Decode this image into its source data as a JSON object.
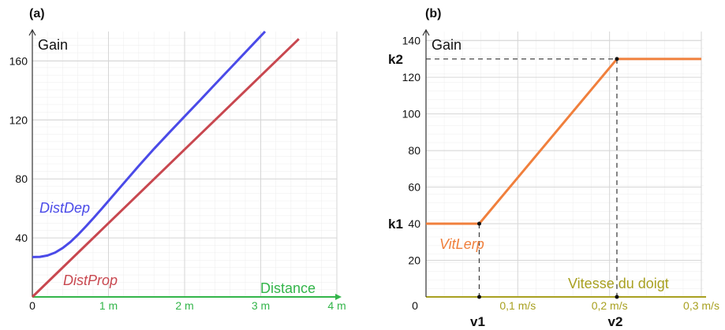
{
  "chart_data": [
    {
      "type": "line",
      "panel_label": "(a)",
      "ylabel": "Gain",
      "xlabel": "Distance",
      "xlim": [
        0,
        4
      ],
      "ylim": [
        0,
        180
      ],
      "x_ticks": [
        {
          "value": 0,
          "label": "0"
        },
        {
          "value": 1,
          "label": "1 m"
        },
        {
          "value": 2,
          "label": "2 m"
        },
        {
          "value": 3,
          "label": "3 m"
        },
        {
          "value": 4,
          "label": "4 m"
        }
      ],
      "y_ticks": [
        {
          "value": 40,
          "label": "40"
        },
        {
          "value": 80,
          "label": "80"
        },
        {
          "value": 120,
          "label": "120"
        },
        {
          "value": 160,
          "label": "160"
        }
      ],
      "grid": true,
      "colors": {
        "xaxis": "#33b54a",
        "yaxis": "#333333",
        "grid": "#e0e0e0"
      },
      "series": [
        {
          "name": "DistDep",
          "color": "#4a4ae8",
          "x": [
            0,
            0.1,
            0.2,
            0.3,
            0.4,
            0.5,
            0.6,
            0.7,
            0.8,
            0.9,
            1.0,
            1.2,
            1.4,
            1.6,
            1.8,
            2.0,
            2.2,
            2.4,
            2.6,
            2.8,
            3.0,
            3.2,
            3.4,
            3.5
          ],
          "y": [
            27,
            27.2,
            28.1,
            30.1,
            33.2,
            37.3,
            42.2,
            47.6,
            53.3,
            59.2,
            65.1,
            77.1,
            89.0,
            100.5,
            111.5,
            122.4,
            133.2,
            144.2,
            155.1,
            166.0,
            176.9,
            187.8,
            198.7,
            204.1
          ]
        },
        {
          "name": "DistProp",
          "color": "#c8474f",
          "x": [
            0,
            3.5
          ],
          "y": [
            0,
            175
          ]
        }
      ]
    },
    {
      "type": "line",
      "panel_label": "(b)",
      "ylabel": "Gain",
      "xlabel": "Vitesse du doigt",
      "xlim": [
        0,
        0.3
      ],
      "ylim": [
        0,
        145
      ],
      "x_ticks": [
        {
          "value": 0,
          "label": "0"
        },
        {
          "value": 0.1,
          "label": "0,1 m/s"
        },
        {
          "value": 0.2,
          "label": "0,2 m/s"
        },
        {
          "value": 0.3,
          "label": "0,3 m/s"
        }
      ],
      "y_ticks": [
        {
          "value": 20,
          "label": "20"
        },
        {
          "value": 40,
          "label": "40"
        },
        {
          "value": 60,
          "label": "60"
        },
        {
          "value": 80,
          "label": "80"
        },
        {
          "value": 100,
          "label": "100"
        },
        {
          "value": 120,
          "label": "120"
        },
        {
          "value": 140,
          "label": "140"
        }
      ],
      "grid": true,
      "colors": {
        "xaxis": "#a8a020",
        "yaxis": "#333333",
        "grid": "#e0e0e0",
        "dashed": "#444444"
      },
      "series": [
        {
          "name": "VitLerp",
          "color": "#f07f3c",
          "x": [
            0,
            0.058,
            0.208,
            0.3
          ],
          "y": [
            40,
            40,
            130,
            130
          ]
        }
      ],
      "markers": {
        "v1": {
          "label": "v1",
          "x": 0.058
        },
        "v2": {
          "label": "v2",
          "x": 0.208
        },
        "k1": {
          "label": "k1",
          "y": 40
        },
        "k2": {
          "label": "k2",
          "y": 130
        }
      }
    }
  ]
}
